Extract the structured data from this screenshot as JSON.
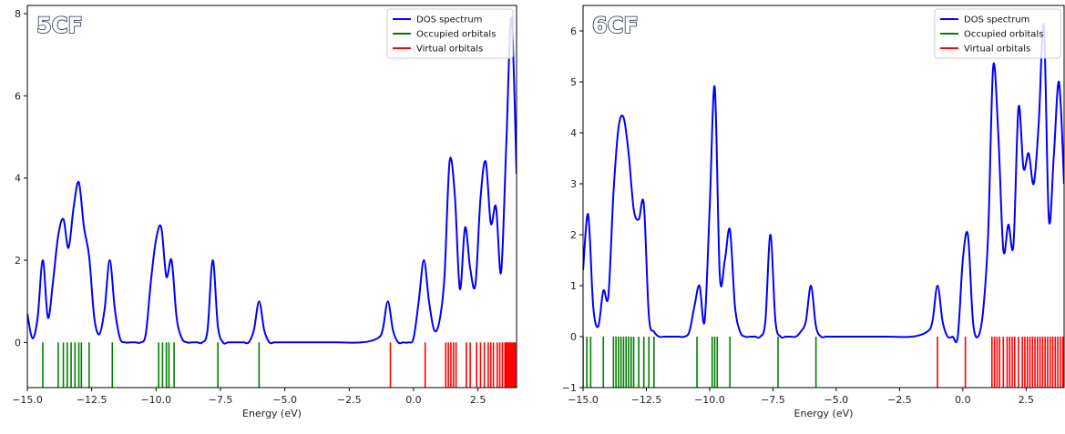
{
  "chart_data": [
    {
      "type": "line",
      "title": "5CF",
      "xlabel": "Energy (eV)",
      "ylabel": "",
      "xlim": [
        -15.0,
        4.0
      ],
      "ylim": [
        -1.1,
        8.2
      ],
      "xticks": [
        -15.0,
        -12.5,
        -10.0,
        -7.5,
        -5.0,
        -2.5,
        0.0,
        2.5
      ],
      "xtick_labels": [
        "−15.0",
        "−12.5",
        "−10.0",
        "−7.5",
        "−5.0",
        "−2.5",
        "0.0",
        "2.5"
      ],
      "yticks": [
        0,
        2,
        4,
        6,
        8
      ],
      "ytick_labels": [
        "0",
        "2",
        "4",
        "6",
        "8"
      ],
      "legend": {
        "position": "top-right",
        "entries": [
          {
            "label": "DOS spectrum",
            "color": "#0000ff"
          },
          {
            "label": "Occupied orbitals",
            "color": "#008000"
          },
          {
            "label": "Virtual orbitals",
            "color": "#ff0000"
          }
        ]
      },
      "grid": false,
      "series": [
        {
          "name": "DOS spectrum",
          "color": "#0000ff",
          "x": [
            -15.0,
            -14.8,
            -14.6,
            -14.4,
            -14.2,
            -14.0,
            -13.8,
            -13.6,
            -13.4,
            -13.2,
            -13.0,
            -12.8,
            -12.6,
            -12.4,
            -12.2,
            -12.0,
            -11.8,
            -11.6,
            -11.4,
            -11.2,
            -11.0,
            -10.8,
            -10.6,
            -10.4,
            -10.2,
            -10.0,
            -9.8,
            -9.6,
            -9.4,
            -9.2,
            -9.0,
            -8.8,
            -8.6,
            -8.4,
            -8.2,
            -8.0,
            -7.8,
            -7.6,
            -7.4,
            -7.2,
            -7.0,
            -6.8,
            -6.6,
            -6.4,
            -6.2,
            -6.0,
            -5.8,
            -5.6,
            -5.4,
            -5.0,
            -4.0,
            -3.0,
            -2.0,
            -1.4,
            -1.2,
            -1.0,
            -0.8,
            -0.6,
            -0.4,
            -0.2,
            0.0,
            0.2,
            0.4,
            0.6,
            0.8,
            1.0,
            1.2,
            1.4,
            1.6,
            1.8,
            2.0,
            2.2,
            2.4,
            2.6,
            2.8,
            3.0,
            3.2,
            3.4,
            3.6,
            3.8,
            4.0
          ],
          "y": [
            0.7,
            0.1,
            0.6,
            2.0,
            0.6,
            1.5,
            2.6,
            3.0,
            2.3,
            3.3,
            3.9,
            2.8,
            2.1,
            0.6,
            0.2,
            0.8,
            2.0,
            0.8,
            0.1,
            0.0,
            0.0,
            0.0,
            0.0,
            0.2,
            1.5,
            2.5,
            2.8,
            1.6,
            2.0,
            0.6,
            0.1,
            0.0,
            0.0,
            0.0,
            0.0,
            0.3,
            2.0,
            0.4,
            0.0,
            0.0,
            0.0,
            0.0,
            0.0,
            0.0,
            0.3,
            1.0,
            0.3,
            0.0,
            0.0,
            0.0,
            0.0,
            0.0,
            0.0,
            0.1,
            0.3,
            1.0,
            0.3,
            0.0,
            0.0,
            0.0,
            0.1,
            1.0,
            2.0,
            1.0,
            0.3,
            0.5,
            1.6,
            4.4,
            3.6,
            1.3,
            2.8,
            1.8,
            1.4,
            3.5,
            4.4,
            2.9,
            3.3,
            1.7,
            4.8,
            7.9,
            4.1
          ]
        },
        {
          "name": "Occupied orbitals",
          "color": "#008000",
          "x": [
            -14.4,
            -13.8,
            -13.6,
            -13.45,
            -13.3,
            -13.15,
            -13.0,
            -12.9,
            -12.6,
            -11.7,
            -9.9,
            -9.75,
            -9.6,
            -9.5,
            -9.3,
            -7.6,
            -6.0
          ]
        },
        {
          "name": "Virtual orbitals",
          "color": "#ff0000",
          "x": [
            -0.9,
            0.45,
            1.25,
            1.35,
            1.45,
            1.55,
            1.65,
            2.05,
            2.2,
            2.45,
            2.6,
            2.75,
            2.9,
            3.0,
            3.1,
            3.25,
            3.35,
            3.45,
            3.55,
            3.6,
            3.65,
            3.7,
            3.75,
            3.8,
            3.85,
            3.9,
            3.95
          ]
        }
      ]
    },
    {
      "type": "line",
      "title": "6CF",
      "xlabel": "Energy (eV)",
      "ylabel": "",
      "xlim": [
        -15.0,
        4.0
      ],
      "ylim": [
        -1.0,
        6.5
      ],
      "xticks": [
        -15.0,
        -12.5,
        -10.0,
        -7.5,
        -5.0,
        -2.5,
        0.0,
        2.5
      ],
      "xtick_labels": [
        "−15.0",
        "−12.5",
        "−10.0",
        "−7.5",
        "−5.0",
        "−2.5",
        "0.0",
        "2.5"
      ],
      "yticks": [
        -1,
        0,
        1,
        2,
        3,
        4,
        5,
        6
      ],
      "ytick_labels": [
        "−1",
        "0",
        "1",
        "2",
        "3",
        "4",
        "5",
        "6"
      ],
      "legend": {
        "position": "top-right",
        "entries": [
          {
            "label": "DOS spectrum",
            "color": "#0000ff"
          },
          {
            "label": "Occupied orbitals",
            "color": "#008000"
          },
          {
            "label": "Virtual orbitals",
            "color": "#ff0000"
          }
        ]
      },
      "grid": false,
      "series": [
        {
          "name": "DOS spectrum",
          "color": "#0000ff",
          "x": [
            -15.0,
            -14.8,
            -14.6,
            -14.4,
            -14.2,
            -14.0,
            -13.8,
            -13.6,
            -13.4,
            -13.2,
            -13.0,
            -12.8,
            -12.6,
            -12.4,
            -12.2,
            -12.0,
            -11.8,
            -11.6,
            -11.4,
            -11.2,
            -11.0,
            -10.8,
            -10.6,
            -10.4,
            -10.2,
            -10.0,
            -9.8,
            -9.6,
            -9.4,
            -9.2,
            -9.0,
            -8.8,
            -8.6,
            -8.4,
            -8.2,
            -8.0,
            -7.8,
            -7.6,
            -7.4,
            -7.2,
            -7.0,
            -6.8,
            -6.6,
            -6.4,
            -6.2,
            -6.0,
            -5.8,
            -5.6,
            -5.4,
            -5.0,
            -4.0,
            -3.0,
            -2.0,
            -1.4,
            -1.2,
            -1.0,
            -0.8,
            -0.6,
            -0.4,
            -0.2,
            0.0,
            0.2,
            0.4,
            0.6,
            0.8,
            1.0,
            1.2,
            1.4,
            1.6,
            1.8,
            2.0,
            2.2,
            2.4,
            2.6,
            2.8,
            3.0,
            3.2,
            3.4,
            3.6,
            3.8,
            4.0
          ],
          "y": [
            1.3,
            2.4,
            0.6,
            0.2,
            0.9,
            0.8,
            2.8,
            4.1,
            4.3,
            3.6,
            2.5,
            2.3,
            2.6,
            0.4,
            0.1,
            0.0,
            0.0,
            0.0,
            0.0,
            0.0,
            0.0,
            0.1,
            0.6,
            1.0,
            0.3,
            2.5,
            4.9,
            1.2,
            1.5,
            2.1,
            0.6,
            0.1,
            0.0,
            0.0,
            0.0,
            0.0,
            0.3,
            2.0,
            0.3,
            0.0,
            0.0,
            0.0,
            0.0,
            0.1,
            0.3,
            1.0,
            0.2,
            0.0,
            0.0,
            0.0,
            0.0,
            0.0,
            0.0,
            0.1,
            0.3,
            1.0,
            0.3,
            0.0,
            0.0,
            0.0,
            1.5,
            2.0,
            0.3,
            0.0,
            0.5,
            2.0,
            5.3,
            4.0,
            1.7,
            2.2,
            1.8,
            4.5,
            3.3,
            3.6,
            3.0,
            4.2,
            6.1,
            2.3,
            3.6,
            5.0,
            3.0
          ]
        },
        {
          "name": "Occupied orbitals",
          "color": "#008000",
          "x": [
            -15.0,
            -14.85,
            -14.7,
            -14.2,
            -13.8,
            -13.7,
            -13.6,
            -13.5,
            -13.4,
            -13.3,
            -13.2,
            -13.1,
            -13.0,
            -12.8,
            -12.6,
            -12.4,
            -12.2,
            -10.5,
            -9.9,
            -9.8,
            -9.7,
            -9.2,
            -7.3,
            -5.8
          ]
        },
        {
          "name": "Virtual orbitals",
          "color": "#ff0000",
          "x": [
            -1.0,
            0.1,
            1.15,
            1.25,
            1.35,
            1.45,
            1.6,
            1.75,
            1.85,
            1.95,
            2.05,
            2.2,
            2.35,
            2.45,
            2.55,
            2.65,
            2.75,
            2.85,
            2.95,
            3.05,
            3.15,
            3.25,
            3.35,
            3.45,
            3.55,
            3.65,
            3.75,
            3.85,
            3.95
          ]
        }
      ]
    }
  ]
}
